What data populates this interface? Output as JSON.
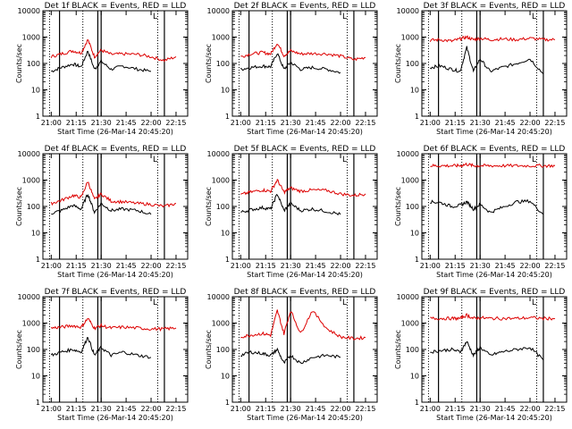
{
  "figure": {
    "ylabel": "Counts/sec",
    "xlabel": "Start Time (26-Mar-14 20:45:20)",
    "ylim": [
      1,
      10000
    ],
    "yscale": "log",
    "yticks": [
      "1",
      "10",
      "100",
      "1000",
      "10000"
    ],
    "xticks": [
      "21:00",
      "21:15",
      "21:30",
      "21:45",
      "22:00",
      "22:15"
    ],
    "colors": {
      "events": "#000000",
      "lld": "#dd0000",
      "axes": "#000000"
    }
  },
  "chart_data": [
    {
      "type": "line",
      "title": "Det 1f BLACK = Events, RED = LLD",
      "legend_marker": "L",
      "x": [
        "21:00",
        "21:06",
        "21:13",
        "21:18",
        "21:22",
        "21:26",
        "21:30",
        "21:36",
        "21:43",
        "21:52",
        "22:00",
        "22:08",
        "22:15"
      ],
      "series": [
        {
          "name": "Events",
          "values": [
            50,
            70,
            95,
            75,
            300,
            60,
            120,
            60,
            80,
            60,
            50,
            null,
            null
          ]
        },
        {
          "name": "LLD",
          "values": [
            180,
            230,
            300,
            250,
            800,
            180,
            320,
            220,
            230,
            220,
            180,
            130,
            180
          ]
        }
      ]
    },
    {
      "type": "line",
      "title": "Det 2f BLACK = Events, RED = LLD",
      "legend_marker": "L",
      "x": [
        "21:00",
        "21:06",
        "21:13",
        "21:18",
        "21:22",
        "21:26",
        "21:30",
        "21:36",
        "21:43",
        "21:52",
        "22:00",
        "22:08",
        "22:15"
      ],
      "series": [
        {
          "name": "Events",
          "values": [
            60,
            70,
            80,
            75,
            250,
            60,
            110,
            60,
            70,
            60,
            45,
            null,
            null
          ]
        },
        {
          "name": "LLD",
          "values": [
            180,
            230,
            260,
            230,
            600,
            200,
            300,
            230,
            240,
            230,
            190,
            140,
            170
          ]
        }
      ]
    },
    {
      "type": "line",
      "title": "Det 3f BLACK = Events, RED = LLD",
      "legend_marker": "L",
      "x": [
        "21:00",
        "21:06",
        "21:13",
        "21:18",
        "21:22",
        "21:26",
        "21:30",
        "21:36",
        "21:43",
        "21:52",
        "22:00",
        "22:08",
        "22:15"
      ],
      "series": [
        {
          "name": "Events",
          "values": [
            70,
            80,
            60,
            50,
            400,
            50,
            150,
            50,
            70,
            100,
            150,
            40,
            null
          ]
        },
        {
          "name": "LLD",
          "values": [
            750,
            800,
            700,
            850,
            1000,
            800,
            900,
            800,
            850,
            800,
            900,
            800,
            800
          ]
        }
      ]
    },
    {
      "type": "line",
      "title": "Det 4f BLACK = Events, RED = LLD",
      "legend_marker": "L",
      "x": [
        "21:00",
        "21:06",
        "21:13",
        "21:18",
        "21:22",
        "21:26",
        "21:30",
        "21:36",
        "21:43",
        "21:52",
        "22:00",
        "22:08",
        "22:15"
      ],
      "series": [
        {
          "name": "Events",
          "values": [
            55,
            70,
            110,
            80,
            300,
            60,
            130,
            70,
            80,
            70,
            50,
            null,
            null
          ]
        },
        {
          "name": "LLD",
          "values": [
            130,
            170,
            260,
            220,
            900,
            180,
            300,
            160,
            150,
            130,
            120,
            100,
            130
          ]
        }
      ]
    },
    {
      "type": "line",
      "title": "Det 5f BLACK = Events, RED = LLD",
      "legend_marker": "L",
      "x": [
        "21:00",
        "21:06",
        "21:13",
        "21:18",
        "21:22",
        "21:26",
        "21:30",
        "21:36",
        "21:43",
        "21:52",
        "22:00",
        "22:08",
        "22:15"
      ],
      "series": [
        {
          "name": "Events",
          "values": [
            60,
            75,
            90,
            80,
            300,
            70,
            130,
            70,
            80,
            65,
            50,
            null,
            null
          ]
        },
        {
          "name": "LLD",
          "values": [
            280,
            350,
            420,
            380,
            1000,
            350,
            500,
            380,
            420,
            400,
            300,
            260,
            300
          ]
        }
      ]
    },
    {
      "type": "line",
      "title": "Det 6f BLACK = Events, RED = LLD",
      "legend_marker": "L",
      "x": [
        "21:00",
        "21:06",
        "21:13",
        "21:18",
        "21:22",
        "21:26",
        "21:30",
        "21:36",
        "21:43",
        "21:52",
        "22:00",
        "22:08",
        "22:15"
      ],
      "series": [
        {
          "name": "Events",
          "values": [
            150,
            140,
            100,
            110,
            150,
            80,
            120,
            60,
            90,
            150,
            160,
            50,
            null
          ]
        },
        {
          "name": "LLD",
          "values": [
            3500,
            3500,
            3500,
            3500,
            4000,
            3500,
            3500,
            3500,
            3500,
            3500,
            3500,
            3500,
            3500
          ]
        }
      ]
    },
    {
      "type": "line",
      "title": "Det 7f BLACK = Events, RED = LLD",
      "legend_marker": "L",
      "x": [
        "21:00",
        "21:06",
        "21:13",
        "21:18",
        "21:22",
        "21:26",
        "21:30",
        "21:36",
        "21:43",
        "21:52",
        "22:00",
        "22:08",
        "22:15"
      ],
      "series": [
        {
          "name": "Events",
          "values": [
            60,
            80,
            100,
            80,
            300,
            60,
            120,
            60,
            80,
            60,
            50,
            null,
            null
          ]
        },
        {
          "name": "LLD",
          "values": [
            650,
            700,
            800,
            700,
            1500,
            650,
            800,
            650,
            700,
            650,
            600,
            600,
            650
          ]
        }
      ]
    },
    {
      "type": "line",
      "title": "Det 8f BLACK = Events, RED = LLD",
      "legend_marker": "L",
      "x": [
        "21:00",
        "21:06",
        "21:13",
        "21:18",
        "21:22",
        "21:26",
        "21:30",
        "21:36",
        "21:43",
        "21:52",
        "22:00",
        "22:08",
        "22:15"
      ],
      "series": [
        {
          "name": "Events",
          "values": [
            60,
            80,
            70,
            60,
            100,
            30,
            60,
            30,
            50,
            60,
            50,
            null,
            null
          ]
        },
        {
          "name": "LLD",
          "values": [
            300,
            350,
            400,
            350,
            3000,
            400,
            3000,
            400,
            3000,
            600,
            300,
            260,
            280
          ]
        }
      ]
    },
    {
      "type": "line",
      "title": "Det 9f BLACK = Events, RED = LLD",
      "legend_marker": "L",
      "x": [
        "21:00",
        "21:06",
        "21:13",
        "21:18",
        "21:22",
        "21:26",
        "21:30",
        "21:36",
        "21:43",
        "21:52",
        "22:00",
        "22:08",
        "22:15"
      ],
      "series": [
        {
          "name": "Events",
          "values": [
            80,
            90,
            100,
            80,
            200,
            60,
            120,
            60,
            80,
            100,
            120,
            40,
            null
          ]
        },
        {
          "name": "LLD",
          "values": [
            1500,
            1500,
            1500,
            1500,
            2000,
            1500,
            1600,
            1500,
            1500,
            1500,
            1600,
            1500,
            1500
          ]
        }
      ]
    }
  ]
}
